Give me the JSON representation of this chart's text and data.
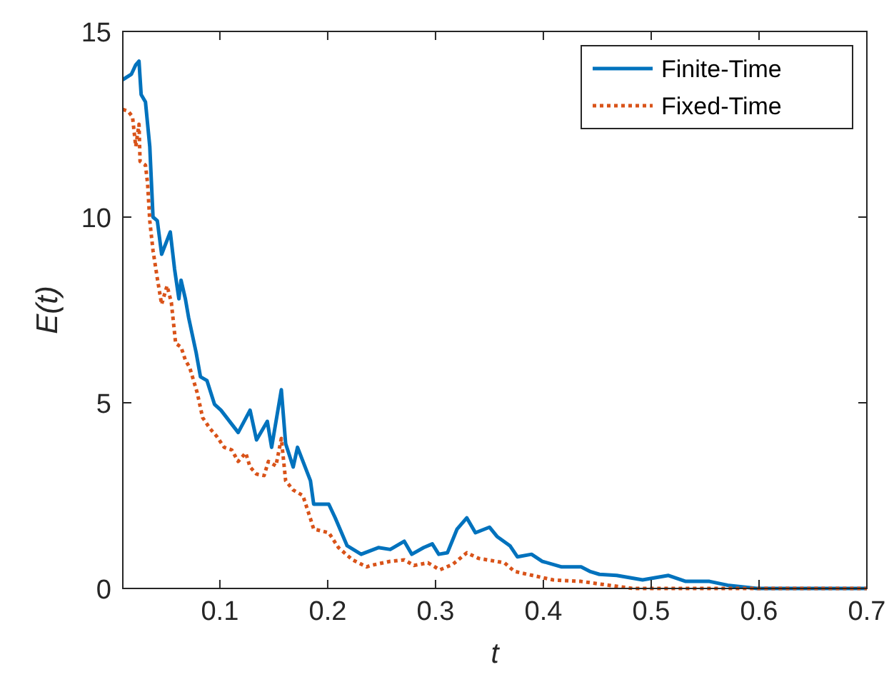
{
  "chart_data": {
    "type": "line",
    "xlabel": "t",
    "ylabel": "E(t)",
    "xlim": [
      0.01,
      0.7
    ],
    "ylim": [
      0,
      15
    ],
    "xticks": [
      0.1,
      0.2,
      0.3,
      0.4,
      0.5,
      0.6,
      0.7
    ],
    "yticks": [
      0,
      5,
      10,
      15
    ],
    "grid": false,
    "legend": "top right",
    "series": [
      {
        "name": "Finite-Time",
        "color": "#0072bd",
        "line_style": "solid",
        "x": [
          0.01,
          0.018,
          0.022,
          0.025,
          0.027,
          0.031,
          0.035,
          0.038,
          0.042,
          0.046,
          0.054,
          0.058,
          0.062,
          0.064,
          0.068,
          0.071,
          0.078,
          0.082,
          0.088,
          0.095,
          0.101,
          0.117,
          0.128,
          0.134,
          0.144,
          0.148,
          0.157,
          0.161,
          0.168,
          0.172,
          0.184,
          0.187,
          0.201,
          0.207,
          0.218,
          0.231,
          0.247,
          0.258,
          0.271,
          0.278,
          0.289,
          0.297,
          0.303,
          0.311,
          0.32,
          0.329,
          0.337,
          0.35,
          0.357,
          0.369,
          0.376,
          0.389,
          0.399,
          0.417,
          0.435,
          0.443,
          0.452,
          0.468,
          0.492,
          0.516,
          0.532,
          0.554,
          0.572,
          0.598,
          0.7
        ],
        "values": [
          13.7,
          13.85,
          14.1,
          14.2,
          13.3,
          13.1,
          11.9,
          10.0,
          9.9,
          9.0,
          9.6,
          8.6,
          7.8,
          8.3,
          7.8,
          7.3,
          6.35,
          5.7,
          5.6,
          4.96,
          4.8,
          4.2,
          4.8,
          4.0,
          4.5,
          3.8,
          5.35,
          3.9,
          3.27,
          3.8,
          2.9,
          2.27,
          2.27,
          1.9,
          1.15,
          0.92,
          1.1,
          1.05,
          1.27,
          0.92,
          1.1,
          1.2,
          0.92,
          0.96,
          1.6,
          1.9,
          1.5,
          1.65,
          1.4,
          1.15,
          0.85,
          0.92,
          0.73,
          0.58,
          0.58,
          0.46,
          0.38,
          0.35,
          0.23,
          0.35,
          0.19,
          0.19,
          0.08,
          0,
          0
        ]
      },
      {
        "name": "Fixed-Time",
        "color": "#d95319",
        "line_style": "dotted",
        "x": [
          0.01,
          0.015,
          0.019,
          0.022,
          0.025,
          0.026,
          0.031,
          0.033,
          0.035,
          0.038,
          0.042,
          0.046,
          0.051,
          0.055,
          0.059,
          0.064,
          0.068,
          0.072,
          0.079,
          0.084,
          0.091,
          0.097,
          0.104,
          0.111,
          0.117,
          0.124,
          0.128,
          0.134,
          0.141,
          0.145,
          0.152,
          0.157,
          0.161,
          0.168,
          0.177,
          0.184,
          0.187,
          0.201,
          0.21,
          0.223,
          0.236,
          0.24,
          0.258,
          0.271,
          0.28,
          0.293,
          0.304,
          0.316,
          0.329,
          0.34,
          0.356,
          0.364,
          0.373,
          0.39,
          0.409,
          0.435,
          0.452,
          0.483,
          0.7
        ],
        "values": [
          12.9,
          12.85,
          12.7,
          11.9,
          12.5,
          11.5,
          11.4,
          10.9,
          9.9,
          9.1,
          8.35,
          7.65,
          8.15,
          7.7,
          6.6,
          6.5,
          6.15,
          5.95,
          5.27,
          4.6,
          4.3,
          4.1,
          3.8,
          3.73,
          3.42,
          3.65,
          3.27,
          3.08,
          3.04,
          3.42,
          3.3,
          4.04,
          2.9,
          2.65,
          2.5,
          1.88,
          1.6,
          1.5,
          1.1,
          0.77,
          0.58,
          0.62,
          0.73,
          0.77,
          0.62,
          0.69,
          0.5,
          0.65,
          0.96,
          0.81,
          0.73,
          0.69,
          0.46,
          0.35,
          0.23,
          0.19,
          0.12,
          0,
          0
        ]
      }
    ]
  }
}
